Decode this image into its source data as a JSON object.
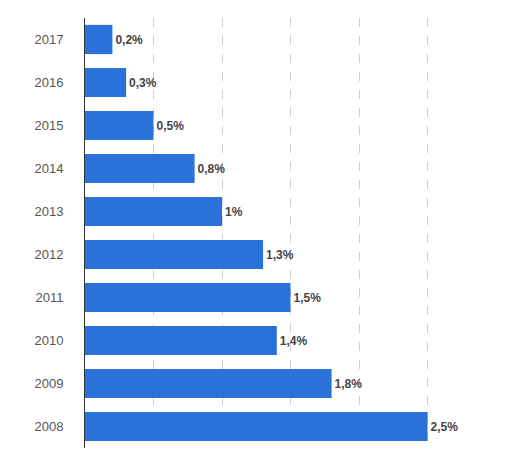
{
  "chart_data": {
    "type": "bar",
    "orientation": "horizontal",
    "categories": [
      "2017",
      "2016",
      "2015",
      "2014",
      "2013",
      "2012",
      "2011",
      "2010",
      "2009",
      "2008"
    ],
    "values": [
      0.2,
      0.3,
      0.5,
      0.8,
      1,
      1.3,
      1.5,
      1.4,
      1.8,
      2.5
    ],
    "value_labels": [
      "0,2%",
      "0,3%",
      "0,5%",
      "0,8%",
      "1%",
      "1,3%",
      "1,5%",
      "1,4%",
      "1,8%",
      "2,5%"
    ],
    "color": "#2a72d9",
    "xlim": [
      0,
      3
    ],
    "xticks": [
      0,
      0.5,
      1,
      1.5,
      2,
      2.5,
      3
    ],
    "grid": true,
    "data_labels": true,
    "tick_labels": "y"
  }
}
